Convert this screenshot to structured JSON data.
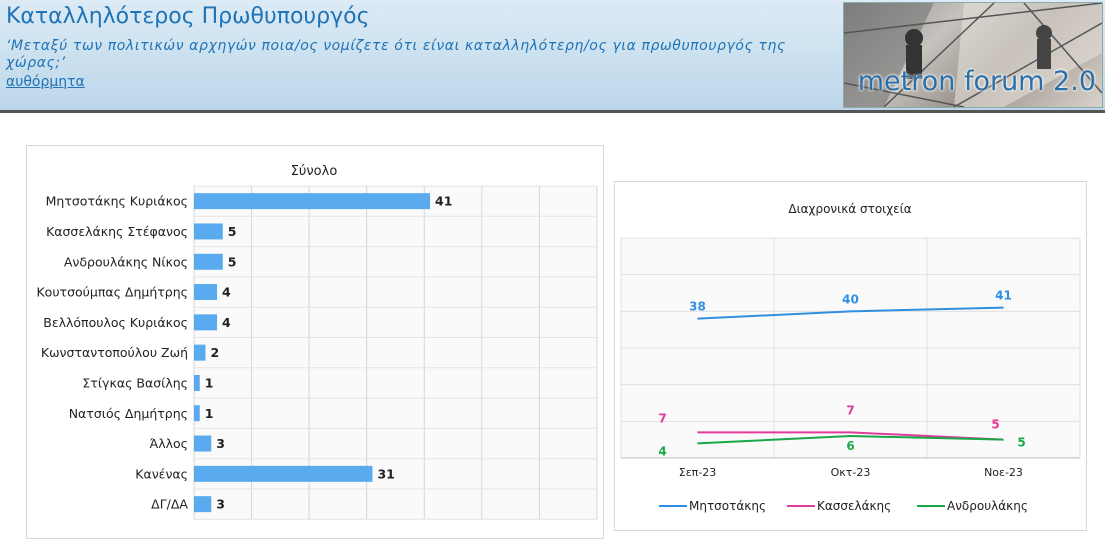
{
  "header": {
    "title": "Καταλληλότερος Πρωθυπουργός",
    "question": "‘Μεταξύ των πολιτικών αρχηγών ποια/ος νομίζετε ότι είναι καταλληλότερη/ος για πρωθυπουργός της χώρας;’",
    "spontaneous": "αυθόρμητα",
    "logo_text": "metron forum 2.0"
  },
  "chart_data": [
    {
      "type": "bar",
      "orientation": "horizontal",
      "title": "Σύνολο",
      "categories": [
        "Μητσοτάκης Κυριάκος",
        "Κασσελάκης Στέφανος",
        "Ανδρουλάκης Νίκος",
        "Κουτσούμπας Δημήτρης",
        "Βελλόπουλος Κυριάκος",
        "Κωνσταντοπούλου Ζωή",
        "Στίγκας Βασίλης",
        "Νατσιός Δημήτρης",
        "Άλλος",
        "Κανένας",
        "ΔΓ/ΔΑ"
      ],
      "values": [
        41,
        5,
        5,
        4,
        4,
        2,
        1,
        1,
        3,
        31,
        3
      ],
      "xlim": [
        0,
        70
      ],
      "grid": true,
      "color": "#5aaaf0"
    },
    {
      "type": "line",
      "title": "Διαχρονικά στοιχεία",
      "x": [
        "Σεπ-23",
        "Οκτ-23",
        "Νοε-23"
      ],
      "series": [
        {
          "name": "Μητσοτάκης",
          "values": [
            38,
            40,
            41
          ],
          "color": "#2f8fe0"
        },
        {
          "name": "Κασσελάκης",
          "values": [
            7,
            7,
            5
          ],
          "color": "#e23a9a"
        },
        {
          "name": "Ανδρουλάκης",
          "values": [
            4,
            6,
            5
          ],
          "color": "#19a847"
        }
      ],
      "ylim": [
        0,
        60
      ],
      "grid": true,
      "legend": "bottom"
    }
  ]
}
